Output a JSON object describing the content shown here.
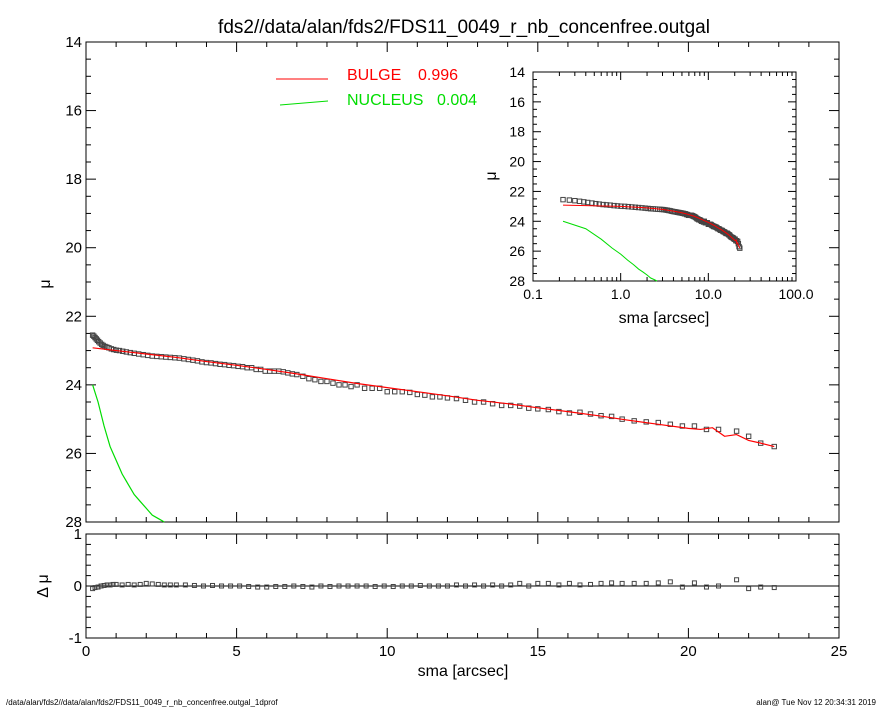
{
  "title": "fds2//data/alan/fds2/FDS11_0049_r_nb_concenfree.outgal",
  "footer": {
    "left": "/data/alan/fds2//data/alan/fds2/FDS11_0049_r_nb_concenfree.outgal_1dprof",
    "right": "alan@  Tue Nov 12 20:34:31 2019"
  },
  "colors": {
    "bulge": "#ff0000",
    "nucleus": "#00dd00",
    "data": "#000000",
    "residual_zero": "#000000"
  },
  "chart_data": [
    {
      "id": "main_profile",
      "type": "scatter",
      "xlabel": "sma [arcsec]",
      "ylabel": "μ",
      "xlim": [
        0,
        25
      ],
      "ylim": [
        28,
        14
      ],
      "y_inverted": true,
      "xticks": [
        "0",
        "5",
        "10",
        "15",
        "20",
        "25"
      ],
      "yticks": [
        "14",
        "16",
        "18",
        "20",
        "22",
        "24",
        "26",
        "28"
      ],
      "legend": [
        {
          "name": "BULGE",
          "value": "0.996",
          "color": "#ff0000"
        },
        {
          "name": "NUCLEUS",
          "value": "0.004",
          "color": "#00dd00"
        }
      ],
      "legend_position": "top-center",
      "data_points": {
        "x": [
          0.22,
          0.26,
          0.3,
          0.34,
          0.38,
          0.42,
          0.47,
          0.52,
          0.57,
          0.63,
          0.69,
          0.76,
          0.84,
          0.92,
          1.01,
          1.11,
          1.22,
          1.34,
          1.47,
          1.6,
          1.75,
          1.9,
          2.05,
          2.2,
          2.35,
          2.5,
          2.65,
          2.8,
          2.95,
          3.1,
          3.25,
          3.4,
          3.55,
          3.7,
          3.85,
          4.0,
          4.15,
          4.3,
          4.45,
          4.6,
          4.75,
          4.9,
          5.05,
          5.2,
          5.35,
          5.5,
          5.65,
          5.8,
          5.95,
          6.1,
          6.25,
          6.4,
          6.55,
          6.7,
          6.85,
          7.0,
          7.2,
          7.4,
          7.6,
          7.8,
          8.0,
          8.2,
          8.4,
          8.6,
          8.8,
          9.0,
          9.25,
          9.5,
          9.75,
          10.0,
          10.25,
          10.5,
          10.75,
          11.0,
          11.25,
          11.5,
          11.75,
          12.0,
          12.3,
          12.6,
          12.9,
          13.2,
          13.5,
          13.8,
          14.1,
          14.4,
          14.7,
          15.0,
          15.35,
          15.7,
          16.05,
          16.4,
          16.75,
          17.1,
          17.45,
          17.8,
          18.2,
          18.6,
          19.0,
          19.4,
          19.8,
          20.2,
          20.6,
          21.0,
          21.6,
          22.0,
          22.4,
          22.85
        ],
        "y": [
          22.55,
          22.58,
          22.62,
          22.66,
          22.7,
          22.74,
          22.78,
          22.82,
          22.85,
          22.88,
          22.9,
          22.92,
          22.95,
          22.97,
          22.99,
          23.0,
          23.02,
          23.04,
          23.06,
          23.08,
          23.1,
          23.12,
          23.14,
          23.16,
          23.17,
          23.18,
          23.19,
          23.2,
          23.21,
          23.22,
          23.24,
          23.26,
          23.28,
          23.3,
          23.33,
          23.35,
          23.36,
          23.38,
          23.4,
          23.41,
          23.43,
          23.44,
          23.46,
          23.47,
          23.5,
          23.5,
          23.55,
          23.55,
          23.6,
          23.6,
          23.6,
          23.6,
          23.62,
          23.65,
          23.68,
          23.7,
          23.75,
          23.82,
          23.85,
          23.9,
          23.9,
          23.95,
          24.0,
          24.0,
          24.05,
          24.0,
          24.1,
          24.1,
          24.1,
          24.2,
          24.2,
          24.2,
          24.22,
          24.28,
          24.3,
          24.35,
          24.35,
          24.38,
          24.4,
          24.45,
          24.5,
          24.5,
          24.55,
          24.6,
          24.6,
          24.62,
          24.68,
          24.7,
          24.72,
          24.78,
          24.82,
          24.8,
          24.85,
          24.9,
          24.92,
          25.0,
          25.05,
          25.08,
          25.1,
          25.15,
          25.2,
          25.2,
          25.3,
          25.3,
          25.35,
          25.5,
          25.7,
          25.8
        ]
      },
      "bulge": {
        "x": [
          0.22,
          1.0,
          2.0,
          3.0,
          4.0,
          5.0,
          6.0,
          7.0,
          8.0,
          9.0,
          10.0,
          11.0,
          12.0,
          13.0,
          14.0,
          15.0,
          16.0,
          17.0,
          18.0,
          19.0,
          20.0,
          20.4,
          20.8,
          21.2,
          21.6,
          22.0,
          22.4,
          22.85
        ],
        "y": [
          22.92,
          23.0,
          23.1,
          23.2,
          23.32,
          23.43,
          23.55,
          23.68,
          23.82,
          23.96,
          24.08,
          24.2,
          24.32,
          24.45,
          24.55,
          24.67,
          24.78,
          24.9,
          25.03,
          25.15,
          25.27,
          25.3,
          25.25,
          25.5,
          25.45,
          25.62,
          25.7,
          25.8
        ]
      },
      "nucleus": {
        "x": [
          0.22,
          0.4,
          0.6,
          0.8,
          1.0,
          1.2,
          1.4,
          1.6,
          1.8,
          2.0,
          2.2,
          2.4,
          2.6
        ],
        "y": [
          24.0,
          24.5,
          25.2,
          25.8,
          26.2,
          26.6,
          26.9,
          27.2,
          27.4,
          27.6,
          27.8,
          27.9,
          28.0
        ]
      }
    },
    {
      "id": "residuals",
      "type": "scatter",
      "xlabel": "sma [arcsec]",
      "ylabel": "Δ μ",
      "xlim": [
        0,
        25
      ],
      "ylim": [
        -1,
        1
      ],
      "yticks": [
        "1",
        "0",
        "-1"
      ],
      "data_points": {
        "x": [
          0.22,
          0.3,
          0.4,
          0.5,
          0.6,
          0.7,
          0.8,
          0.9,
          1.0,
          1.2,
          1.4,
          1.6,
          1.8,
          2.0,
          2.2,
          2.4,
          2.6,
          2.8,
          3.0,
          3.3,
          3.6,
          3.9,
          4.2,
          4.5,
          4.8,
          5.1,
          5.4,
          5.7,
          6.0,
          6.3,
          6.6,
          6.9,
          7.2,
          7.5,
          7.8,
          8.1,
          8.4,
          8.7,
          9.0,
          9.3,
          9.6,
          9.9,
          10.2,
          10.5,
          10.8,
          11.1,
          11.4,
          11.7,
          12.0,
          12.3,
          12.6,
          12.9,
          13.2,
          13.5,
          13.8,
          14.1,
          14.4,
          14.7,
          15.0,
          15.35,
          15.7,
          16.05,
          16.4,
          16.75,
          17.1,
          17.45,
          17.8,
          18.2,
          18.6,
          19.0,
          19.4,
          19.8,
          20.2,
          20.6,
          21.0,
          21.6,
          22.0,
          22.4,
          22.85
        ],
        "y": [
          -0.05,
          -0.03,
          -0.02,
          0.0,
          0.01,
          0.02,
          0.02,
          0.03,
          0.03,
          0.02,
          0.03,
          0.02,
          0.03,
          0.05,
          0.04,
          0.03,
          0.02,
          0.02,
          0.02,
          0.02,
          0.01,
          0.0,
          0.01,
          0.0,
          0.0,
          0.0,
          -0.01,
          -0.02,
          -0.02,
          -0.01,
          -0.01,
          0.0,
          -0.01,
          -0.02,
          0.0,
          -0.01,
          0.0,
          0.0,
          0.0,
          0.0,
          -0.01,
          0.0,
          -0.01,
          0.0,
          0.0,
          0.01,
          0.0,
          0.0,
          0.0,
          0.02,
          0.0,
          0.02,
          0.0,
          0.02,
          0.0,
          0.02,
          0.05,
          0.0,
          0.05,
          0.05,
          0.02,
          0.05,
          0.02,
          0.03,
          0.05,
          0.06,
          0.05,
          0.05,
          0.05,
          0.06,
          0.08,
          -0.02,
          0.06,
          -0.02,
          0.0,
          0.12,
          -0.05,
          -0.02,
          -0.03
        ]
      }
    },
    {
      "id": "inset_log",
      "type": "scatter",
      "xlabel": "sma [arcsec]",
      "ylabel": "μ",
      "xscale": "log",
      "xlim": [
        0.1,
        100
      ],
      "ylim": [
        28,
        14
      ],
      "y_inverted": true,
      "xticks": [
        "0.1",
        "1.0",
        "10.0",
        "100.0"
      ],
      "yticks": [
        "14",
        "16",
        "18",
        "20",
        "22",
        "24",
        "26",
        "28"
      ]
    }
  ]
}
